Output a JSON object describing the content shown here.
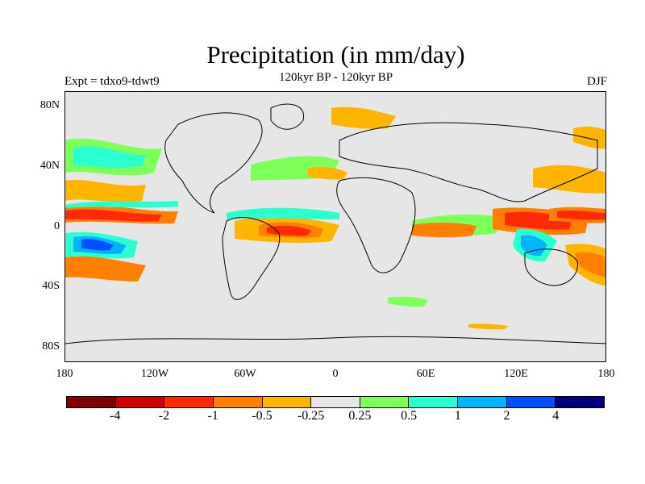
{
  "title": "Precipitation (in mm/day)",
  "subtitle": "120kyr BP - 120kyr BP",
  "experiment_label": "Expt = tdxo9-tdwt9",
  "season_label": "DJF",
  "latitude_ticks": [
    "80N",
    "40N",
    "0",
    "40S",
    "80S"
  ],
  "longitude_ticks": [
    "180",
    "120W",
    "60W",
    "0",
    "60E",
    "120E",
    "180"
  ],
  "colorbar": {
    "colors": [
      "#800000",
      "#d00000",
      "#ff2a00",
      "#ff7f00",
      "#ffb400",
      "#e6e6e6",
      "#7fff5a",
      "#2affd0",
      "#00b4ff",
      "#0050ff",
      "#00007f"
    ],
    "labels": [
      "-4",
      "-2",
      "-1",
      "-0.5",
      "-0.25",
      "0.25",
      "0.5",
      "1",
      "2",
      "4"
    ]
  }
}
